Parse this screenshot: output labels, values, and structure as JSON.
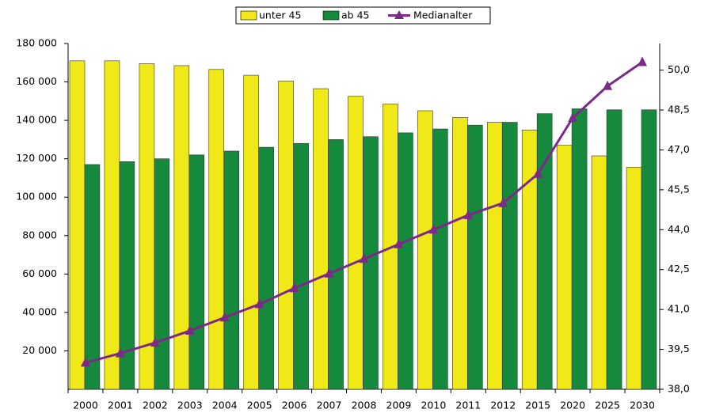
{
  "chart_data": {
    "type": "bar-line",
    "categories": [
      "2000",
      "2001",
      "2002",
      "2003",
      "2004",
      "2005",
      "2006",
      "2007",
      "2008",
      "2009",
      "2010",
      "2011",
      "2012",
      "2015",
      "2020",
      "2025",
      "2030"
    ],
    "series": [
      {
        "name": "unter 45",
        "color": "#f0e817",
        "values": [
          171000,
          171000,
          169500,
          168500,
          166500,
          163500,
          160500,
          156500,
          152500,
          148500,
          145000,
          141500,
          139000,
          135000,
          127000,
          121500,
          115500
        ]
      },
      {
        "name": "ab 45",
        "color": "#168a3c",
        "values": [
          117000,
          118500,
          120000,
          122000,
          124000,
          126000,
          128000,
          130000,
          131500,
          133500,
          135500,
          137500,
          139000,
          143500,
          146000,
          145500,
          145500
        ]
      },
      {
        "name": "Medianalter",
        "color": "#7b2a8a",
        "axis": "y2",
        "values": [
          39.0,
          39.35,
          39.75,
          40.2,
          40.7,
          41.2,
          41.8,
          42.35,
          42.9,
          43.45,
          44.0,
          44.55,
          45.0,
          46.1,
          48.2,
          49.4,
          50.3
        ]
      }
    ],
    "ylim": [
      0,
      180000
    ],
    "yticks": [
      {
        "value": 20000,
        "label": "20 000"
      },
      {
        "value": 40000,
        "label": "40 000"
      },
      {
        "value": 60000,
        "label": "60 000"
      },
      {
        "value": 80000,
        "label": "80 000"
      },
      {
        "value": 100000,
        "label": "100 000"
      },
      {
        "value": 120000,
        "label": "120 000"
      },
      {
        "value": 140000,
        "label": "140 000"
      },
      {
        "value": 160000,
        "label": "160 000"
      },
      {
        "value": 180000,
        "label": "180 000"
      }
    ],
    "y2lim": [
      38,
      51
    ],
    "y2ticks": [
      {
        "value": 38,
        "label": "38,0"
      },
      {
        "value": 39.5,
        "label": "39,5"
      },
      {
        "value": 41,
        "label": "41,0"
      },
      {
        "value": 42.5,
        "label": "42,5"
      },
      {
        "value": 44,
        "label": "44,0"
      },
      {
        "value": 45.5,
        "label": "45,5"
      },
      {
        "value": 47,
        "label": "47,0"
      },
      {
        "value": 48.5,
        "label": "48,5"
      },
      {
        "value": 50,
        "label": "50,0"
      }
    ],
    "legend": "top"
  }
}
